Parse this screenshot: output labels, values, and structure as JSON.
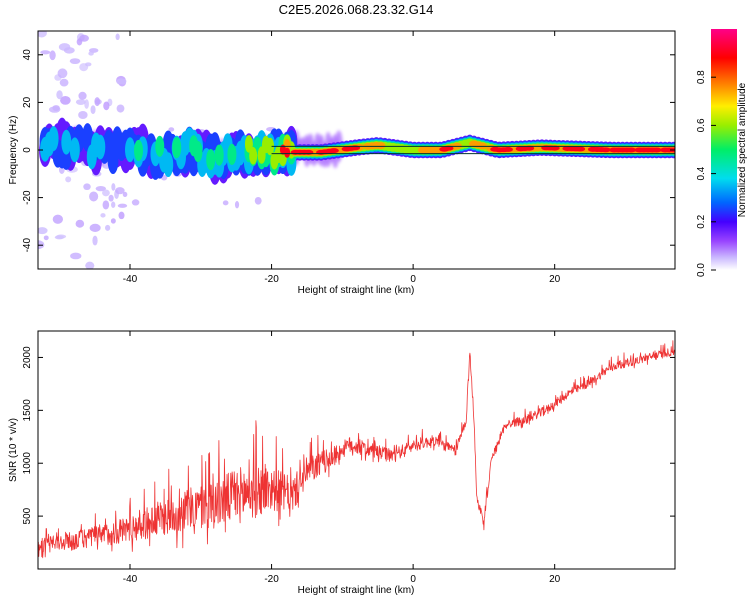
{
  "title": "C2E5.2026.068.23.32.G14",
  "colors": {
    "snr_line": "#ee3333",
    "colormap": [
      "#ffffff",
      "#ccbbff",
      "#9944ff",
      "#4400ff",
      "#0066ff",
      "#00ddee",
      "#00ee66",
      "#ffee00",
      "#ff7700",
      "#ff0044",
      "#ff0088"
    ]
  },
  "chart_data": [
    {
      "type": "heatmap",
      "title": "C2E5.2026.068.23.32.G14",
      "xlabel": "Height of straight line (km)",
      "ylabel": "Frequency (Hz)",
      "xlim": [
        -53,
        37
      ],
      "ylim": [
        -50,
        50
      ],
      "xticks": [
        -40,
        -20,
        0,
        20
      ],
      "yticks": [
        -40,
        -20,
        0,
        20,
        40
      ],
      "xtick_labels": [
        "-40",
        "-20",
        "0",
        "20"
      ],
      "ytick_labels": [
        "-40",
        "-20",
        "0",
        "20",
        "40"
      ],
      "colorbar": {
        "label": "Normalized spectral amplitude",
        "range": [
          0,
          1
        ],
        "ticks": [
          0.0,
          0.2,
          0.4,
          0.6,
          0.8
        ],
        "tick_labels": [
          "0.0",
          "0.2",
          "0.4",
          "0.6",
          "0.8"
        ]
      },
      "description_points": [
        {
          "x": -51,
          "y": 3,
          "amp": 0.3
        },
        {
          "x": -47,
          "y": 2,
          "amp": 0.25
        },
        {
          "x": -44,
          "y": 0,
          "amp": 0.3
        },
        {
          "x": -40,
          "y": 1,
          "amp": 0.35
        },
        {
          "x": -36,
          "y": -2,
          "amp": 0.4
        },
        {
          "x": -32,
          "y": 0,
          "amp": 0.4
        },
        {
          "x": -28,
          "y": -3,
          "amp": 0.45
        },
        {
          "x": -24,
          "y": -2,
          "amp": 0.4
        },
        {
          "x": -18,
          "y": -1,
          "amp": 0.9
        },
        {
          "x": -13,
          "y": -1,
          "amp": 0.9
        },
        {
          "x": -8,
          "y": 1,
          "amp": 0.85
        },
        {
          "x": -5,
          "y": 2,
          "amp": 0.7
        },
        {
          "x": 0,
          "y": 0,
          "amp": 0.6
        },
        {
          "x": 4,
          "y": 0,
          "amp": 0.9
        },
        {
          "x": 8,
          "y": 3,
          "amp": 0.6
        },
        {
          "x": 12,
          "y": 0,
          "amp": 0.9
        },
        {
          "x": 18,
          "y": 1,
          "amp": 0.8
        },
        {
          "x": 28,
          "y": 0,
          "amp": 0.95
        },
        {
          "x": 35,
          "y": 0,
          "amp": 0.95
        }
      ]
    },
    {
      "type": "line",
      "xlabel": "Height of straight line (km)",
      "ylabel": "SNR (10 * v/v)",
      "xlim": [
        -53,
        37
      ],
      "ylim": [
        0,
        2250
      ],
      "xticks": [
        -40,
        -20,
        0,
        20
      ],
      "yticks": [
        500,
        1000,
        1500,
        2000
      ],
      "xtick_labels": [
        "-40",
        "-20",
        "0",
        "20"
      ],
      "ytick_labels": [
        "500",
        "1000",
        "1500",
        "2000"
      ],
      "trend": {
        "x": [
          -53,
          -48,
          -43,
          -38,
          -33,
          -28,
          -23,
          -20,
          -17,
          -15,
          -12,
          -9,
          -6,
          -3,
          0,
          3,
          6,
          7.5,
          8,
          8.6,
          9,
          10,
          11,
          13,
          16,
          19,
          22,
          25,
          28,
          31,
          34,
          37
        ],
        "y": [
          200,
          240,
          300,
          380,
          480,
          550,
          650,
          700,
          650,
          880,
          1000,
          1150,
          1100,
          1050,
          1150,
          1200,
          1100,
          1400,
          2050,
          1400,
          650,
          400,
          1000,
          1350,
          1400,
          1500,
          1650,
          1750,
          1900,
          1950,
          2000,
          2050
        ]
      },
      "noise": {
        "x": [
          -53,
          -43,
          -33,
          -23,
          -18,
          -10,
          0,
          10,
          20,
          37
        ],
        "amp": [
          130,
          220,
          380,
          560,
          350,
          160,
          110,
          90,
          80,
          80
        ]
      }
    }
  ]
}
